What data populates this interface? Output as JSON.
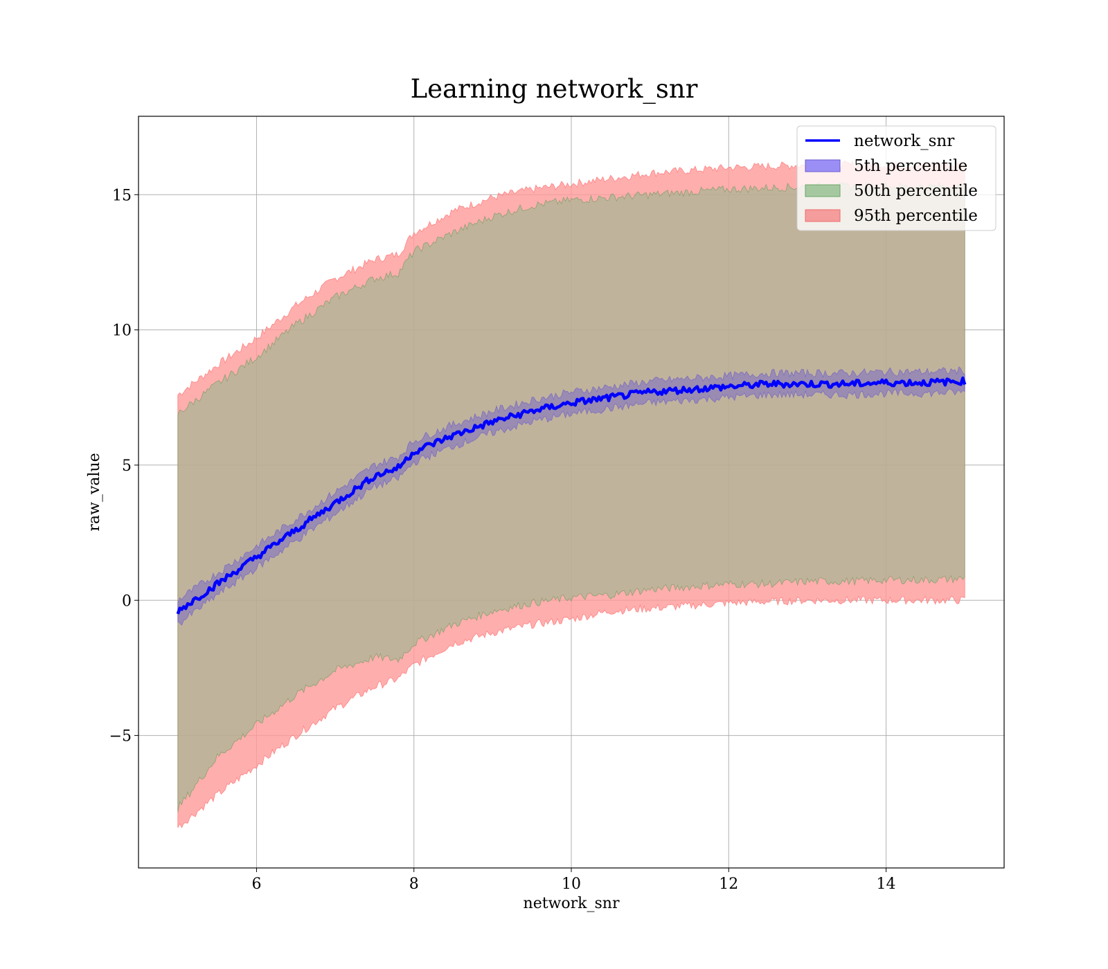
{
  "chart_data": {
    "type": "area",
    "title": "Learning network_snr",
    "xlabel": "network_snr",
    "ylabel": "raw_value",
    "xlim": [
      4.5,
      15.5
    ],
    "ylim": [
      -9.9,
      17.9
    ],
    "xticks": [
      6,
      8,
      10,
      12,
      14
    ],
    "yticks": [
      -5,
      0,
      5,
      10,
      15
    ],
    "ytick_labels": [
      "−5",
      "0",
      "5",
      "10",
      "15"
    ],
    "grid": true,
    "legend_position": "top-right",
    "x": [
      5.0,
      5.5,
      6.0,
      6.5,
      7.0,
      7.5,
      7.8,
      8.0,
      8.5,
      9.0,
      9.5,
      10.0,
      10.5,
      11.0,
      11.5,
      12.0,
      12.5,
      13.0,
      13.5,
      14.0,
      14.5,
      15.0
    ],
    "series": [
      {
        "name": "network_snr",
        "kind": "line",
        "color": "#0000ff",
        "values": [
          -0.4,
          0.6,
          1.6,
          2.6,
          3.6,
          4.6,
          4.9,
          5.5,
          6.1,
          6.6,
          7.0,
          7.3,
          7.5,
          7.7,
          7.8,
          7.9,
          8.0,
          8.0,
          8.0,
          8.05,
          8.05,
          8.1
        ]
      },
      {
        "name": "5th percentile",
        "kind": "band",
        "color": "#7b6cf5",
        "lower": [
          -0.9,
          0.2,
          1.2,
          2.2,
          3.2,
          4.2,
          4.5,
          5.1,
          5.7,
          6.2,
          6.6,
          6.9,
          7.1,
          7.3,
          7.4,
          7.5,
          7.6,
          7.6,
          7.6,
          7.65,
          7.65,
          7.7
        ],
        "upper": [
          0.0,
          1.0,
          2.0,
          3.0,
          4.0,
          5.0,
          5.3,
          5.9,
          6.5,
          7.0,
          7.4,
          7.7,
          7.9,
          8.1,
          8.2,
          8.3,
          8.4,
          8.4,
          8.4,
          8.45,
          8.45,
          8.5
        ]
      },
      {
        "name": "50th percentile",
        "kind": "band",
        "color": "#6aa66a",
        "lower": [
          -7.7,
          -5.8,
          -4.6,
          -3.5,
          -2.6,
          -2.1,
          -2.2,
          -1.6,
          -0.9,
          -0.4,
          -0.1,
          0.1,
          0.2,
          0.4,
          0.5,
          0.6,
          0.6,
          0.7,
          0.7,
          0.75,
          0.75,
          0.8
        ],
        "upper": [
          6.9,
          8.0,
          9.0,
          10.2,
          11.2,
          11.9,
          12.1,
          12.9,
          13.6,
          14.2,
          14.6,
          14.8,
          14.9,
          15.0,
          15.1,
          15.2,
          15.25,
          15.3,
          15.3,
          15.3,
          15.3,
          15.3
        ]
      },
      {
        "name": "95th percentile",
        "kind": "band",
        "color": "#f28b8b",
        "lower": [
          -8.4,
          -7.2,
          -6.1,
          -5.0,
          -4.0,
          -3.2,
          -2.9,
          -2.4,
          -1.6,
          -1.2,
          -0.9,
          -0.7,
          -0.4,
          -0.3,
          -0.2,
          -0.1,
          -0.05,
          0.0,
          0.0,
          0.0,
          0.0,
          0.0
        ],
        "upper": [
          7.6,
          8.7,
          9.7,
          10.9,
          11.9,
          12.6,
          12.8,
          13.6,
          14.4,
          14.9,
          15.2,
          15.4,
          15.6,
          15.8,
          15.9,
          16.0,
          16.05,
          16.1,
          16.1,
          16.1,
          16.1,
          16.1
        ]
      }
    ]
  }
}
